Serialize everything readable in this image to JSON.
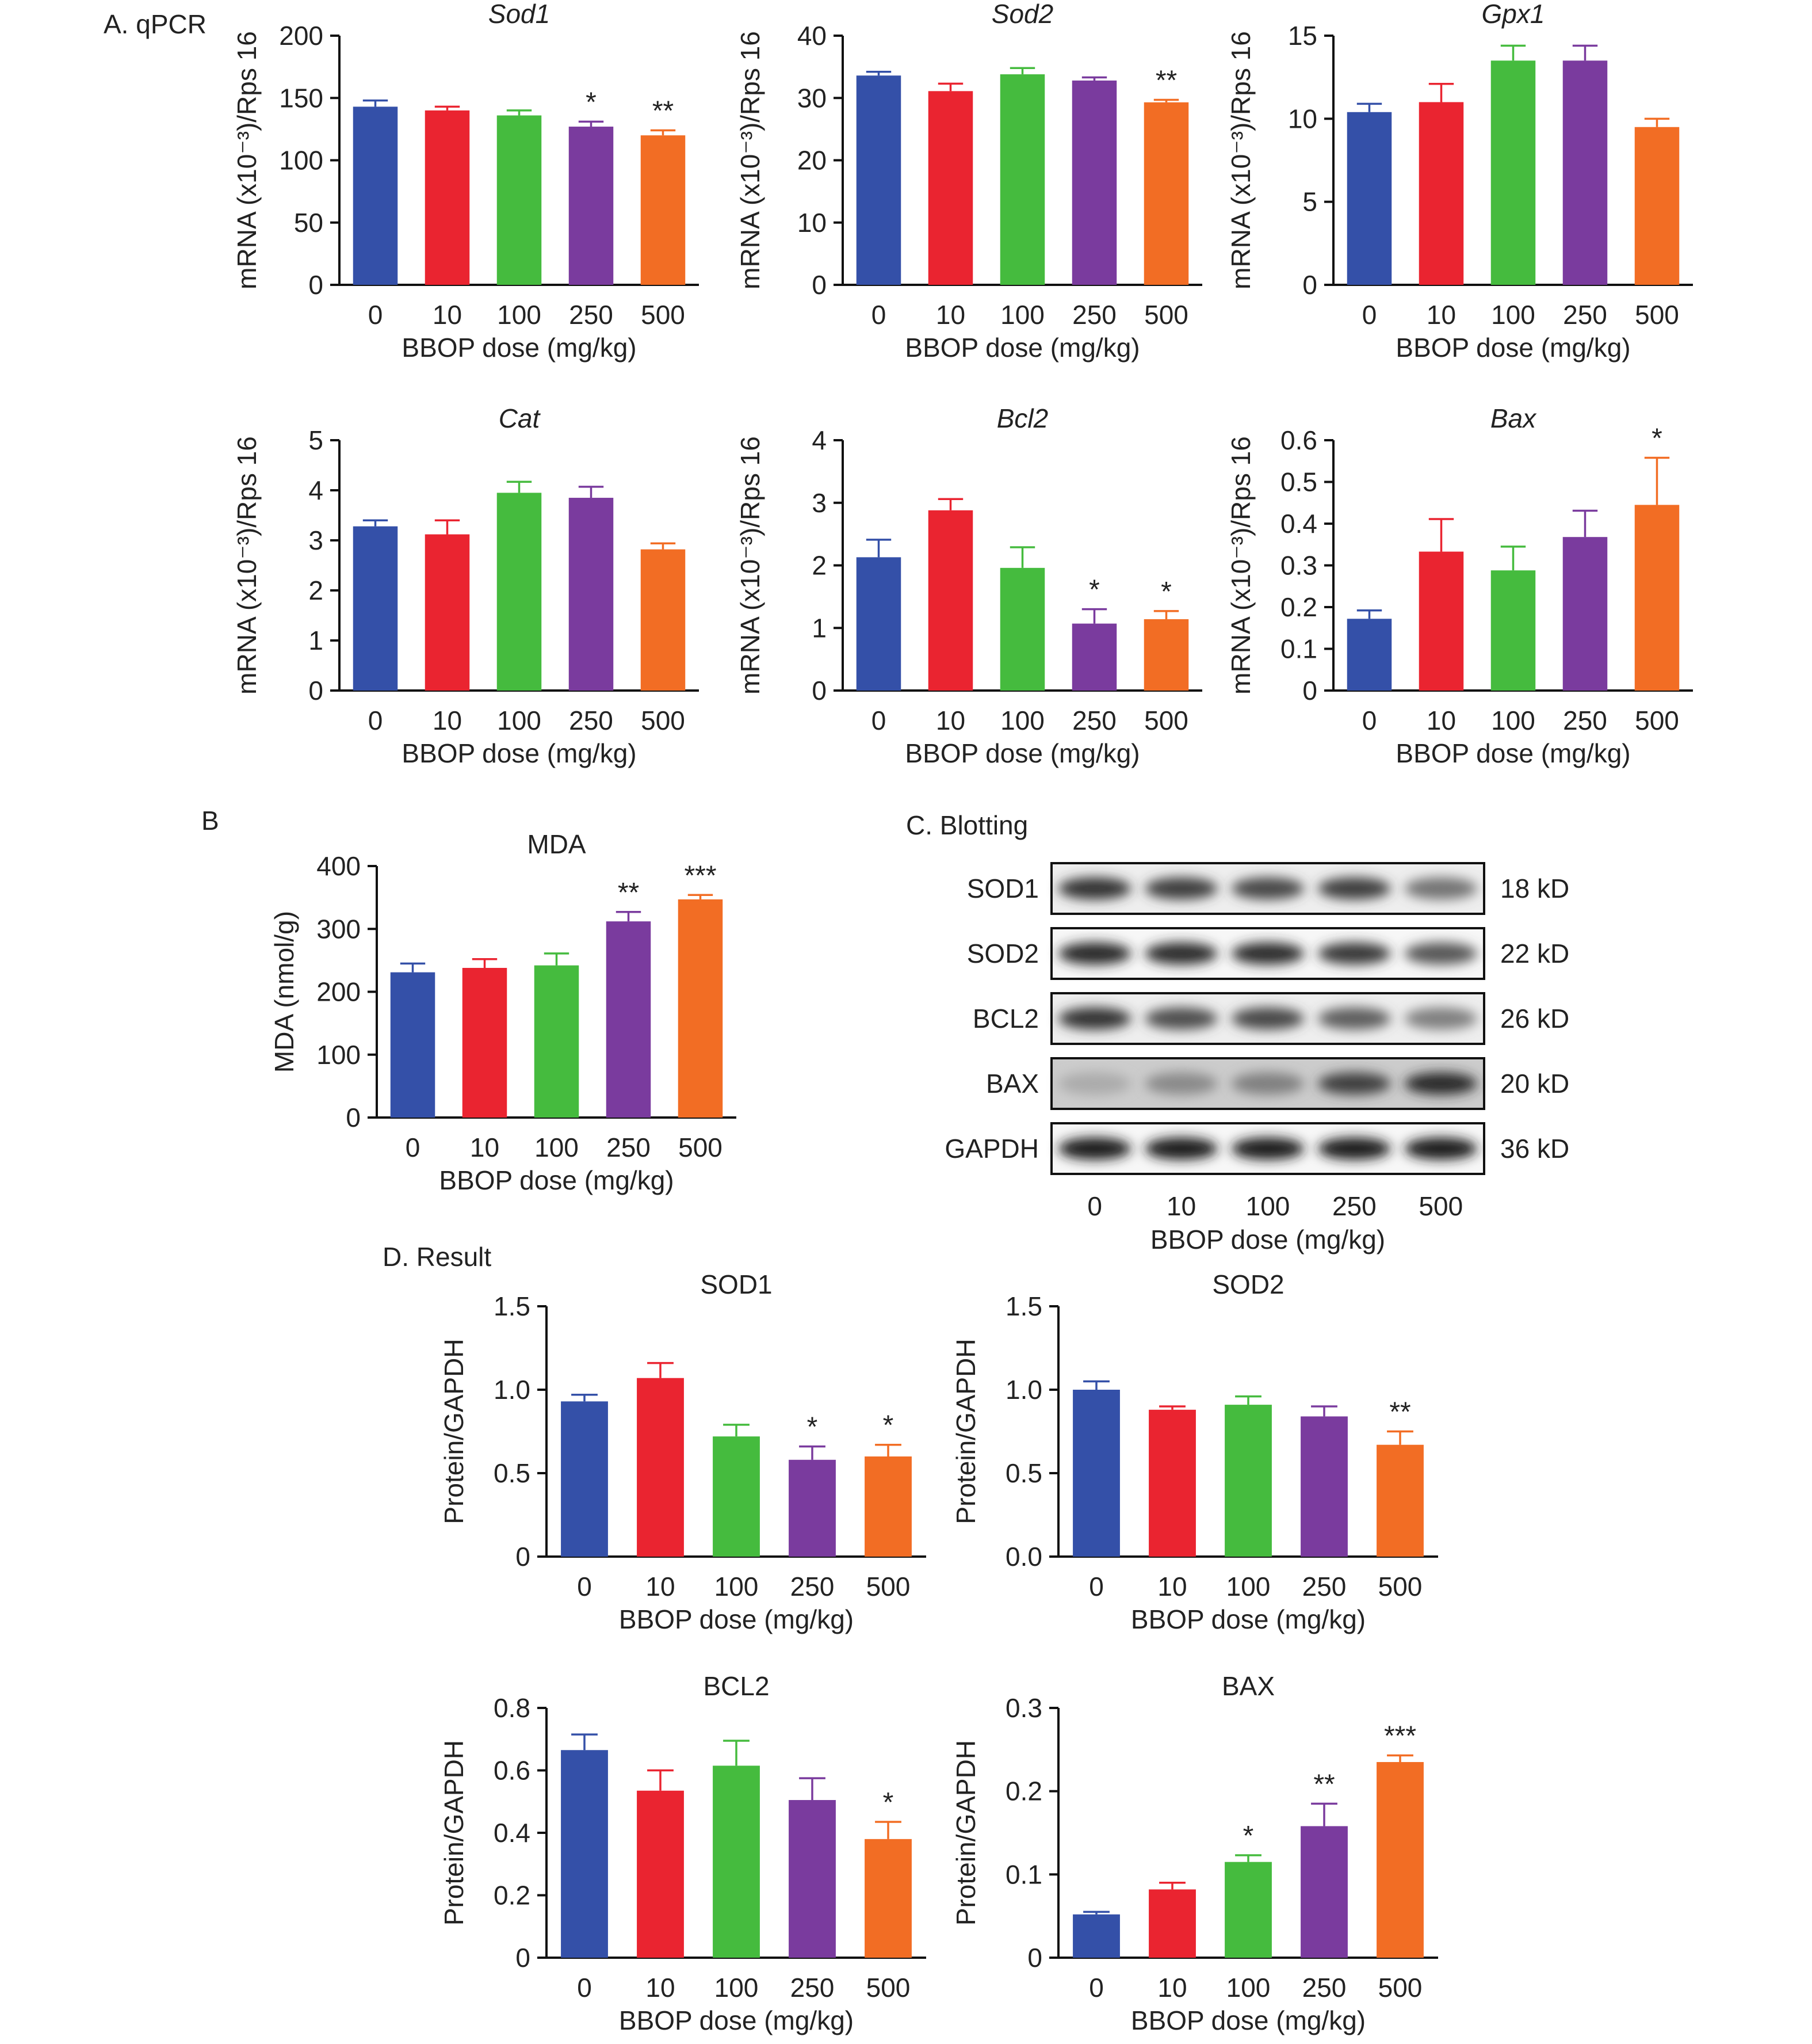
{
  "colors": [
    "#3450a8",
    "#ea2430",
    "#45bb3e",
    "#7a3b9e",
    "#f26d24"
  ],
  "panel_labels": {
    "a": "A. qPCR",
    "b": "B",
    "c": "C. Blotting",
    "d": "D. Result"
  },
  "chart_data": [
    {
      "id": "sod1-qpcr",
      "type": "bar",
      "title": "Sod1",
      "italic": true,
      "categories": [
        "0",
        "10",
        "100",
        "250",
        "500"
      ],
      "values": [
        143,
        140,
        136,
        127,
        120
      ],
      "errors": [
        5,
        3,
        4,
        4,
        4
      ],
      "significance": [
        "",
        "",
        "",
        "*",
        "**"
      ],
      "xlabel": "BBOP dose (mg/kg)",
      "ylabel": "mRNA (x10⁻³)/Rps 16",
      "ylim": [
        0,
        200
      ],
      "yticks": [
        "0",
        "50",
        "100",
        "150",
        "200"
      ]
    },
    {
      "id": "sod2-qpcr",
      "type": "bar",
      "title": "Sod2",
      "italic": true,
      "categories": [
        "0",
        "10",
        "100",
        "250",
        "500"
      ],
      "values": [
        33.6,
        31.1,
        33.8,
        32.8,
        29.3
      ],
      "errors": [
        0.6,
        1.2,
        1.0,
        0.5,
        0.4
      ],
      "significance": [
        "",
        "",
        "",
        "",
        "**"
      ],
      "xlabel": "BBOP dose (mg/kg)",
      "ylabel": "mRNA (x10⁻³)/Rps 16",
      "ylim": [
        0,
        40
      ],
      "yticks": [
        "0",
        "10",
        "20",
        "30",
        "40"
      ]
    },
    {
      "id": "gpx1-qpcr",
      "type": "bar",
      "title": "Gpx1",
      "italic": true,
      "categories": [
        "0",
        "10",
        "100",
        "250",
        "500"
      ],
      "values": [
        10.4,
        11.0,
        13.5,
        13.5,
        9.5
      ],
      "errors": [
        0.5,
        1.1,
        0.9,
        0.9,
        0.5
      ],
      "significance": [
        "",
        "",
        "",
        "",
        ""
      ],
      "xlabel": "BBOP dose (mg/kg)",
      "ylabel": "mRNA (x10⁻³)/Rps 16",
      "ylim": [
        0,
        15
      ],
      "yticks": [
        "0",
        "5",
        "10",
        "15"
      ]
    },
    {
      "id": "cat-qpcr",
      "type": "bar",
      "title": "Cat",
      "italic": true,
      "categories": [
        "0",
        "10",
        "100",
        "250",
        "500"
      ],
      "values": [
        3.28,
        3.12,
        3.95,
        3.85,
        2.82
      ],
      "errors": [
        0.12,
        0.28,
        0.22,
        0.22,
        0.12
      ],
      "significance": [
        "",
        "",
        "",
        "",
        ""
      ],
      "xlabel": "BBOP dose (mg/kg)",
      "ylabel": "mRNA (x10⁻³)/Rps 16",
      "ylim": [
        0,
        5
      ],
      "yticks": [
        "0",
        "1",
        "2",
        "3",
        "4",
        "5"
      ]
    },
    {
      "id": "bcl2-qpcr",
      "type": "bar",
      "title": "Bcl2",
      "italic": true,
      "categories": [
        "0",
        "10",
        "100",
        "250",
        "500"
      ],
      "values": [
        2.13,
        2.88,
        1.96,
        1.07,
        1.14
      ],
      "errors": [
        0.28,
        0.18,
        0.33,
        0.23,
        0.13
      ],
      "significance": [
        "",
        "",
        "",
        "*",
        "*"
      ],
      "xlabel": "BBOP dose (mg/kg)",
      "ylabel": "mRNA (x10⁻³)/Rps 16",
      "ylim": [
        0,
        4
      ],
      "yticks": [
        "0",
        "1",
        "2",
        "3",
        "4"
      ]
    },
    {
      "id": "bax-qpcr",
      "type": "bar",
      "title": "Bax",
      "italic": true,
      "categories": [
        "0",
        "10",
        "100",
        "250",
        "500"
      ],
      "values": [
        0.172,
        0.333,
        0.288,
        0.368,
        0.445
      ],
      "errors": [
        0.02,
        0.078,
        0.057,
        0.063,
        0.113
      ],
      "significance": [
        "",
        "",
        "",
        "",
        "*"
      ],
      "xlabel": "BBOP dose (mg/kg)",
      "ylabel": "mRNA (x10⁻³)/Rps 16",
      "ylim": [
        0,
        0.6
      ],
      "yticks": [
        "0",
        "0.1",
        "0.2",
        "0.3",
        "0.4",
        "0.5",
        "0.6"
      ]
    },
    {
      "id": "mda",
      "type": "bar",
      "title": "MDA",
      "italic": false,
      "categories": [
        "0",
        "10",
        "100",
        "250",
        "500"
      ],
      "values": [
        231,
        238,
        242,
        312,
        347
      ],
      "errors": [
        14,
        14,
        19,
        15,
        7
      ],
      "significance": [
        "",
        "",
        "",
        "**",
        "***"
      ],
      "xlabel": "BBOP dose (mg/kg)",
      "ylabel": "MDA (nmol/g)",
      "ylim": [
        0,
        400
      ],
      "yticks": [
        "0",
        "100",
        "200",
        "300",
        "400"
      ]
    },
    {
      "id": "sod1-protein",
      "type": "bar",
      "title": "SOD1",
      "italic": false,
      "categories": [
        "0",
        "10",
        "100",
        "250",
        "500"
      ],
      "values": [
        0.93,
        1.07,
        0.72,
        0.58,
        0.6
      ],
      "errors": [
        0.04,
        0.09,
        0.07,
        0.08,
        0.07
      ],
      "significance": [
        "",
        "",
        "",
        "*",
        "*"
      ],
      "xlabel": "BBOP dose (mg/kg)",
      "ylabel": "Protein/GAPDH",
      "ylim": [
        0,
        1.5
      ],
      "yticks": [
        "0",
        "0.5",
        "1.0",
        "1.5"
      ]
    },
    {
      "id": "sod2-protein",
      "type": "bar",
      "title": "SOD2",
      "italic": false,
      "categories": [
        "0",
        "10",
        "100",
        "250",
        "500"
      ],
      "values": [
        1.0,
        0.88,
        0.91,
        0.84,
        0.67
      ],
      "errors": [
        0.05,
        0.02,
        0.05,
        0.06,
        0.08
      ],
      "significance": [
        "",
        "",
        "",
        "",
        "**"
      ],
      "xlabel": "BBOP dose (mg/kg)",
      "ylabel": "Protein/GAPDH",
      "ylim": [
        0,
        1.5
      ],
      "yticks": [
        "0.0",
        "0.5",
        "1.0",
        "1.5"
      ]
    },
    {
      "id": "bcl2-protein",
      "type": "bar",
      "title": "BCL2",
      "italic": false,
      "categories": [
        "0",
        "10",
        "100",
        "250",
        "500"
      ],
      "values": [
        0.665,
        0.535,
        0.615,
        0.505,
        0.38
      ],
      "errors": [
        0.05,
        0.065,
        0.08,
        0.07,
        0.055
      ],
      "significance": [
        "",
        "",
        "",
        "",
        "*"
      ],
      "xlabel": "BBOP dose (mg/kg)",
      "ylabel": "Protein/GAPDH",
      "ylim": [
        0,
        0.8
      ],
      "yticks": [
        "0",
        "0.2",
        "0.4",
        "0.6",
        "0.8"
      ]
    },
    {
      "id": "bax-protein",
      "type": "bar",
      "title": "BAX",
      "italic": false,
      "categories": [
        "0",
        "10",
        "100",
        "250",
        "500"
      ],
      "values": [
        0.052,
        0.082,
        0.115,
        0.158,
        0.235
      ],
      "errors": [
        0.003,
        0.008,
        0.008,
        0.027,
        0.008
      ],
      "significance": [
        "",
        "",
        "*",
        "**",
        "***"
      ],
      "xlabel": "BBOP dose (mg/kg)",
      "ylabel": "Protein/GAPDH",
      "ylim": [
        0,
        0.3
      ],
      "yticks": [
        "0",
        "0.1",
        "0.2",
        "0.3"
      ]
    }
  ],
  "blot": {
    "lanes": [
      "0",
      "10",
      "100",
      "250",
      "500"
    ],
    "xlabel": "BBOP dose (mg/kg)",
    "rows": [
      {
        "name": "SOD1",
        "size": "18 kD",
        "intensity": [
          0.85,
          0.8,
          0.75,
          0.8,
          0.55
        ],
        "background": 0.1
      },
      {
        "name": "SOD2",
        "size": "22 kD",
        "intensity": [
          0.9,
          0.88,
          0.88,
          0.82,
          0.68
        ],
        "background": 0.05
      },
      {
        "name": "BCL2",
        "size": "26 kD",
        "intensity": [
          0.85,
          0.72,
          0.75,
          0.65,
          0.5
        ],
        "background": 0.1
      },
      {
        "name": "BAX",
        "size": "20 kD",
        "intensity": [
          0.3,
          0.45,
          0.5,
          0.8,
          0.9
        ],
        "background": 0.3
      },
      {
        "name": "GAPDH",
        "size": "36 kD",
        "intensity": [
          0.95,
          0.95,
          0.95,
          0.95,
          0.95
        ],
        "background": 0.05
      }
    ]
  }
}
